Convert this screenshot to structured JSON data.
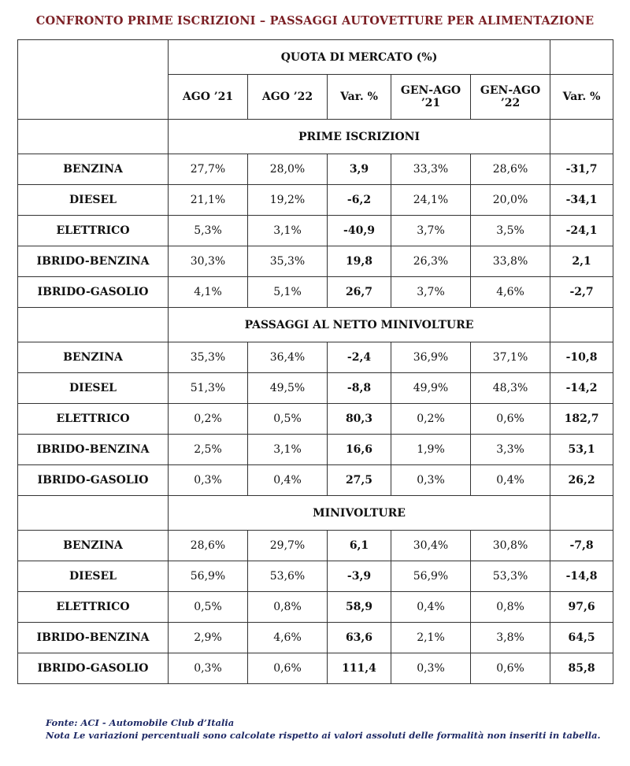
{
  "title": "CONFRONTO PRIME ISCRIZIONI – PASSAGGI AUTOVETTURE PER ALIMENTAZIONE",
  "header": {
    "quota": "QUOTA DI MERCATO (%)",
    "columns": [
      "AGO ’21",
      "AGO ’22",
      "Var. %",
      "GEN-AGO ’21",
      "GEN-AGO ’22",
      "Var. %"
    ]
  },
  "sections": [
    {
      "title": "PRIME ISCRIZIONI",
      "rows": [
        {
          "label": "BENZINA",
          "ago21": "27,7%",
          "ago22": "28,0%",
          "var1": "3,9",
          "gen21": "33,3%",
          "gen22": "28,6%",
          "var2": "-31,7"
        },
        {
          "label": "DIESEL",
          "ago21": "21,1%",
          "ago22": "19,2%",
          "var1": "-6,2",
          "gen21": "24,1%",
          "gen22": "20,0%",
          "var2": "-34,1"
        },
        {
          "label": "ELETTRICO",
          "ago21": "5,3%",
          "ago22": "3,1%",
          "var1": "-40,9",
          "gen21": "3,7%",
          "gen22": "3,5%",
          "var2": "-24,1"
        },
        {
          "label": "IBRIDO-BENZINA",
          "ago21": "30,3%",
          "ago22": "35,3%",
          "var1": "19,8",
          "gen21": "26,3%",
          "gen22": "33,8%",
          "var2": "2,1"
        },
        {
          "label": "IBRIDO-GASOLIO",
          "ago21": "4,1%",
          "ago22": "5,1%",
          "var1": "26,7",
          "gen21": "3,7%",
          "gen22": "4,6%",
          "var2": "-2,7"
        }
      ]
    },
    {
      "title": "PASSAGGI AL NETTO MINIVOLTURE",
      "rows": [
        {
          "label": "BENZINA",
          "ago21": "35,3%",
          "ago22": "36,4%",
          "var1": "-2,4",
          "gen21": "36,9%",
          "gen22": "37,1%",
          "var2": "-10,8"
        },
        {
          "label": "DIESEL",
          "ago21": "51,3%",
          "ago22": "49,5%",
          "var1": "-8,8",
          "gen21": "49,9%",
          "gen22": "48,3%",
          "var2": "-14,2"
        },
        {
          "label": "ELETTRICO",
          "ago21": "0,2%",
          "ago22": "0,5%",
          "var1": "80,3",
          "gen21": "0,2%",
          "gen22": "0,6%",
          "var2": "182,7"
        },
        {
          "label": "IBRIDO-BENZINA",
          "ago21": "2,5%",
          "ago22": "3,1%",
          "var1": "16,6",
          "gen21": "1,9%",
          "gen22": "3,3%",
          "var2": "53,1"
        },
        {
          "label": "IBRIDO-GASOLIO",
          "ago21": "0,3%",
          "ago22": "0,4%",
          "var1": "27,5",
          "gen21": "0,3%",
          "gen22": "0,4%",
          "var2": "26,2"
        }
      ]
    },
    {
      "title": "MINIVOLTURE",
      "rows": [
        {
          "label": "BENZINA",
          "ago21": "28,6%",
          "ago22": "29,7%",
          "var1": "6,1",
          "gen21": "30,4%",
          "gen22": "30,8%",
          "var2": "-7,8"
        },
        {
          "label": "DIESEL",
          "ago21": "56,9%",
          "ago22": "53,6%",
          "var1": "-3,9",
          "gen21": "56,9%",
          "gen22": "53,3%",
          "var2": "-14,8"
        },
        {
          "label": "ELETTRICO",
          "ago21": "0,5%",
          "ago22": "0,8%",
          "var1": "58,9",
          "gen21": "0,4%",
          "gen22": "0,8%",
          "var2": "97,6"
        },
        {
          "label": "IBRIDO-BENZINA",
          "ago21": "2,9%",
          "ago22": "4,6%",
          "var1": "63,6",
          "gen21": "2,1%",
          "gen22": "3,8%",
          "var2": "64,5"
        },
        {
          "label": "IBRIDO-GASOLIO",
          "ago21": "0,3%",
          "ago22": "0,6%",
          "var1": "111,4",
          "gen21": "0,3%",
          "gen22": "0,6%",
          "var2": "85,8"
        }
      ]
    }
  ],
  "footer": {
    "source": "Fonte: ACI - Automobile Club d’Italia",
    "note": "Nota Le variazioni percentuali sono calcolate rispetto ai valori assoluti delle formalità non inseriti in tabella."
  },
  "colors": {
    "title": "#7b1f24",
    "label": "#1f2a66",
    "negative": "#d63a2a",
    "positive": "#111111"
  }
}
